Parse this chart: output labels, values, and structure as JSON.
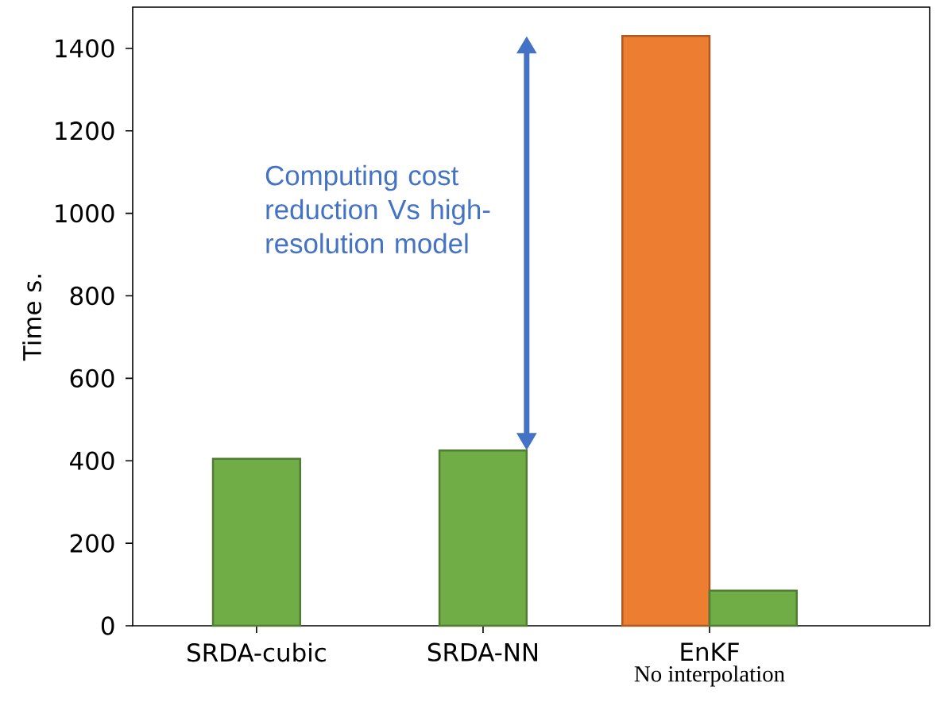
{
  "chart_data": {
    "type": "bar",
    "ylabel": "Time s.",
    "categories": [
      "SRDA-cubic",
      "SRDA-NN",
      "EnKF"
    ],
    "series": [
      {
        "color": "#ed7d31",
        "values": [
          null,
          null,
          1430
        ]
      },
      {
        "color": "#70ad47",
        "values": [
          405,
          425,
          85
        ]
      }
    ],
    "ylim": [
      0,
      1500
    ],
    "yticks": [
      0,
      200,
      400,
      600,
      800,
      1000,
      1200,
      1400
    ],
    "annotations": [
      "Computing cost reduction Vs high-resolution model",
      "No interpolation"
    ]
  }
}
